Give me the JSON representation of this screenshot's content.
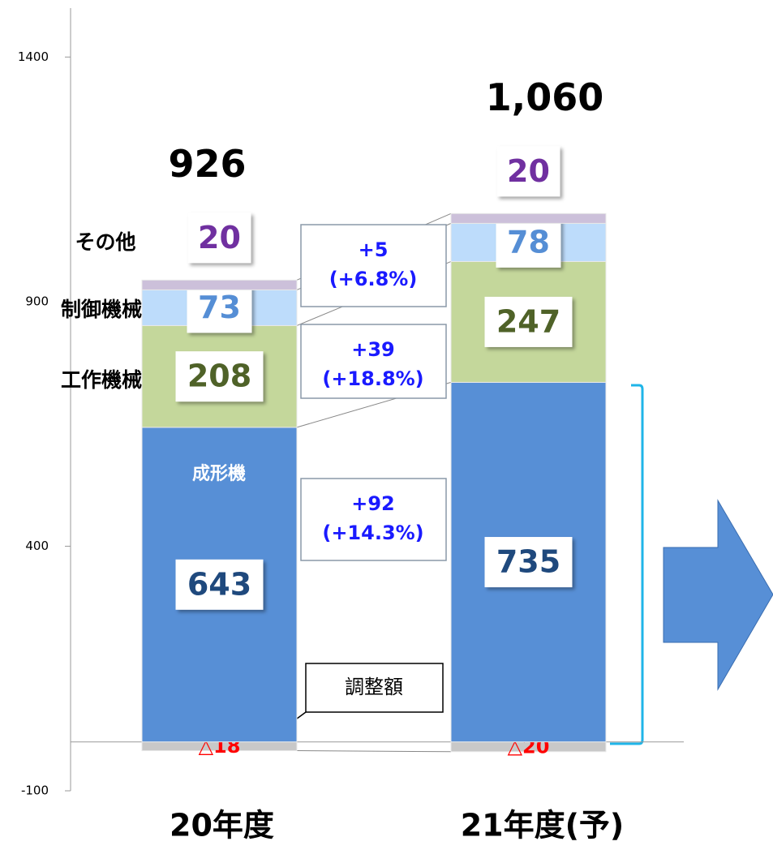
{
  "chart_data": {
    "type": "stacked_bar",
    "categories": [
      "20年度",
      "21年度(予)"
    ],
    "series": [
      {
        "name": "調整額",
        "color": "#c8c8c8",
        "label_color": "#ff0000",
        "values": [
          -18,
          -20
        ],
        "value_labels": [
          "△18",
          "△20"
        ]
      },
      {
        "name": "成形機",
        "color": "#578fd6",
        "label_color": "#1f497d",
        "values": [
          643,
          735
        ]
      },
      {
        "name": "工作機械",
        "color": "#c4d79b",
        "label_color": "#4f6228",
        "values": [
          208,
          247
        ]
      },
      {
        "name": "制御機械",
        "color": "#bddcfb",
        "label_color": "#558ed5",
        "values": [
          73,
          78
        ]
      },
      {
        "name": "その他",
        "color": "#ccc0da",
        "label_color": "#7030a0",
        "values": [
          20,
          20
        ]
      }
    ],
    "totals": [
      {
        "value": 926,
        "label": "926"
      },
      {
        "value": 1060,
        "label": "1,060"
      }
    ],
    "annotations": [
      {
        "change": "+5",
        "rate": "(+6.8%)"
      },
      {
        "change": "+39",
        "rate": "(+18.8%)"
      },
      {
        "change": "+92",
        "rate": "(+14.3%)"
      }
    ],
    "ylim": [
      -100,
      1500
    ],
    "yticks": [
      -100,
      400,
      900,
      1400
    ]
  }
}
